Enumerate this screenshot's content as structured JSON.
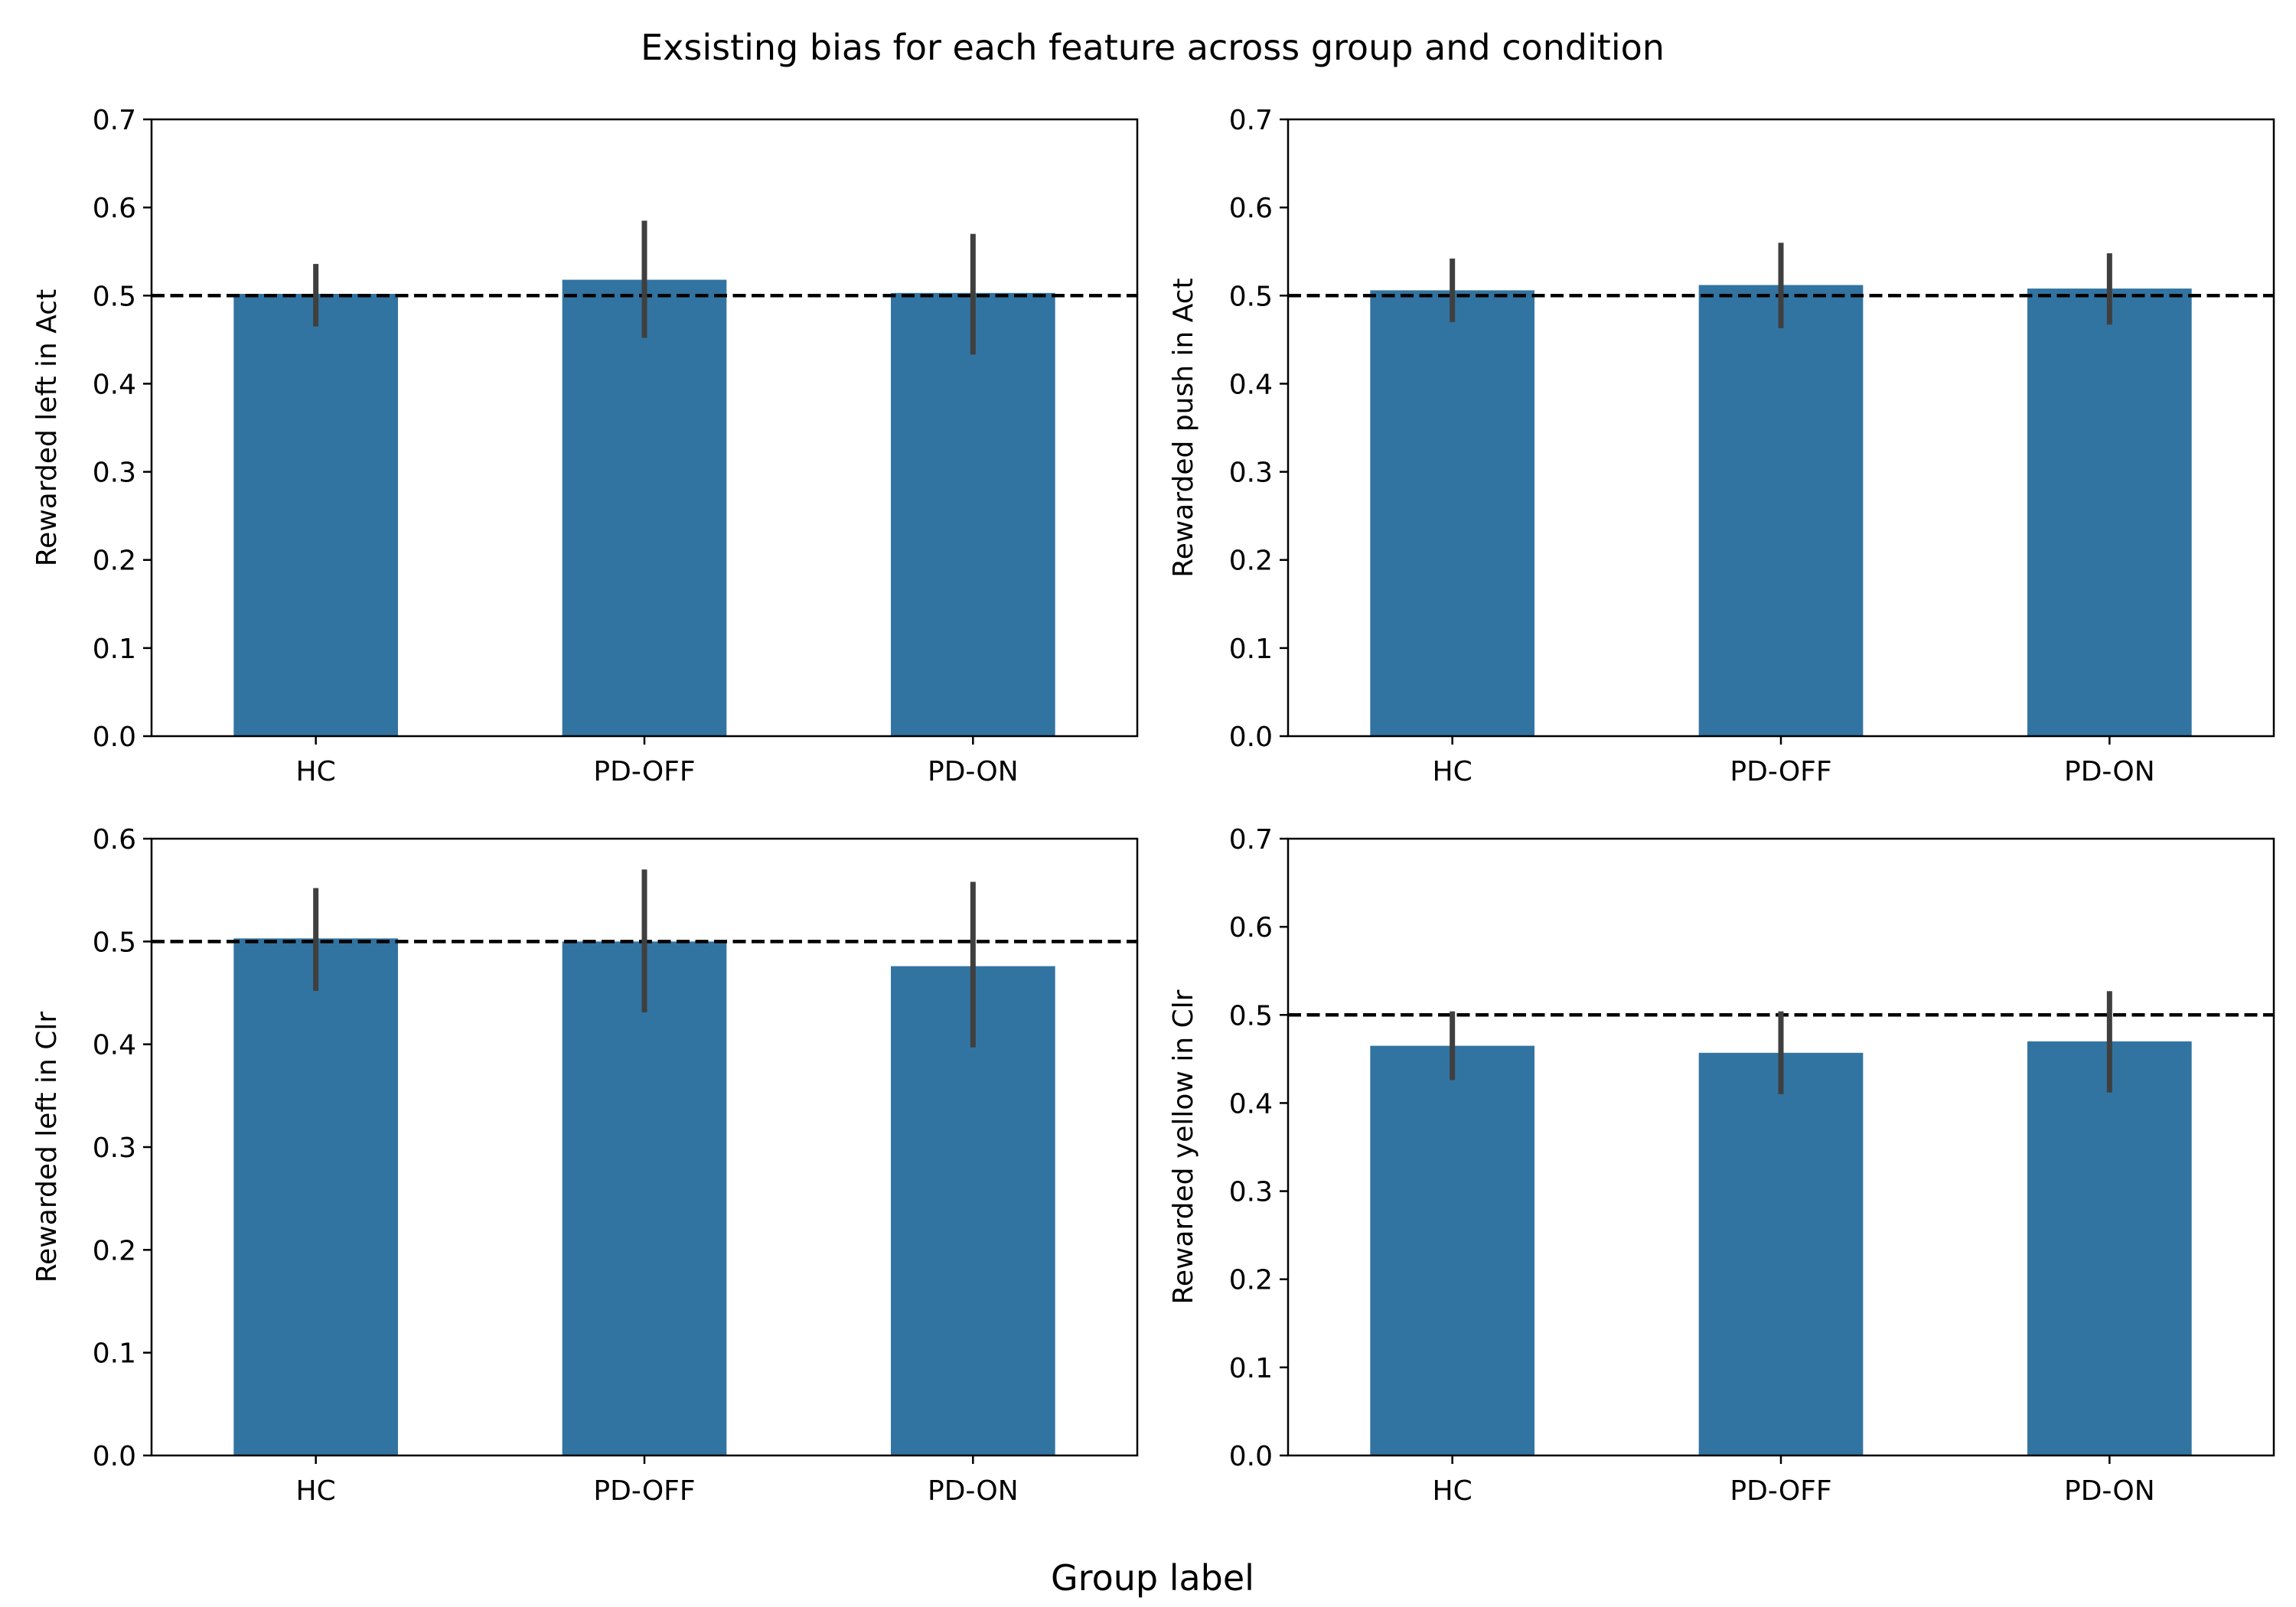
{
  "figure": {
    "title": "Exsisting bias for each feature across group and condition",
    "xlabel": "Group label"
  },
  "colors": {
    "bar": "#3274a1",
    "errorbar": "#3f3f3f",
    "reference_line": "#000000"
  },
  "chart_data": [
    {
      "type": "bar",
      "categories": [
        "HC",
        "PD-OFF",
        "PD-ON"
      ],
      "values": [
        0.502,
        0.518,
        0.503
      ],
      "error_low": [
        0.465,
        0.452,
        0.433
      ],
      "error_high": [
        0.536,
        0.585,
        0.57
      ],
      "ylabel": "Rewarded left in Act",
      "ylim": [
        0,
        0.7
      ],
      "yticks": [
        0.0,
        0.1,
        0.2,
        0.3,
        0.4,
        0.5,
        0.6,
        0.7
      ],
      "reference_line": 0.5,
      "grid": false
    },
    {
      "type": "bar",
      "categories": [
        "HC",
        "PD-OFF",
        "PD-ON"
      ],
      "values": [
        0.506,
        0.512,
        0.508
      ],
      "error_low": [
        0.47,
        0.463,
        0.467
      ],
      "error_high": [
        0.542,
        0.56,
        0.548
      ],
      "ylabel": "Rewarded push in Act",
      "ylim": [
        0,
        0.7
      ],
      "yticks": [
        0.0,
        0.1,
        0.2,
        0.3,
        0.4,
        0.5,
        0.6,
        0.7
      ],
      "reference_line": 0.5,
      "grid": false
    },
    {
      "type": "bar",
      "categories": [
        "HC",
        "PD-OFF",
        "PD-ON"
      ],
      "values": [
        0.503,
        0.5,
        0.476
      ],
      "error_low": [
        0.452,
        0.431,
        0.397
      ],
      "error_high": [
        0.552,
        0.57,
        0.558
      ],
      "ylabel": "Rewarded left in Clr",
      "ylim": [
        0,
        0.6
      ],
      "yticks": [
        0.0,
        0.1,
        0.2,
        0.3,
        0.4,
        0.5,
        0.6
      ],
      "reference_line": 0.5,
      "grid": false
    },
    {
      "type": "bar",
      "categories": [
        "HC",
        "PD-OFF",
        "PD-ON"
      ],
      "values": [
        0.465,
        0.457,
        0.47
      ],
      "error_low": [
        0.426,
        0.41,
        0.412
      ],
      "error_high": [
        0.504,
        0.504,
        0.527
      ],
      "ylabel": "Rewarded yellow in Clr",
      "ylim": [
        0,
        0.7
      ],
      "yticks": [
        0.0,
        0.1,
        0.2,
        0.3,
        0.4,
        0.5,
        0.6,
        0.7
      ],
      "reference_line": 0.5,
      "grid": false
    }
  ]
}
